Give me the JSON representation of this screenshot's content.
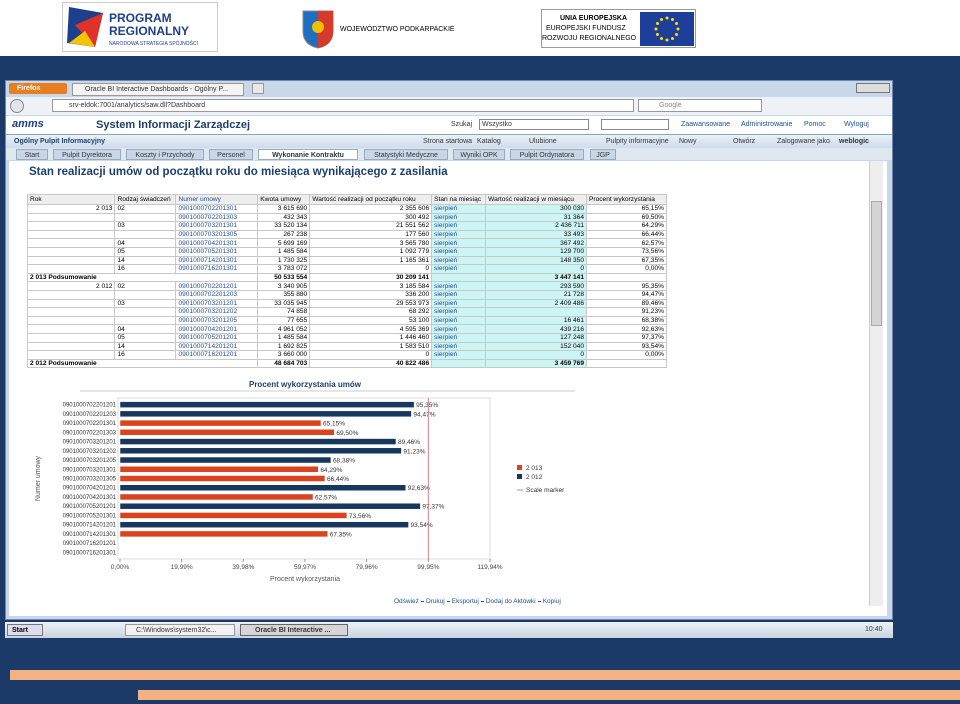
{
  "logos": {
    "program_title": "PROGRAM REGIONALNY",
    "program_subtitle": "NARODOWA STRATEGIA SPÓJNOŚCI",
    "region": "WOJEWÓDZTWO PODKARPACKIE",
    "eu_title": "UNIA EUROPEJSKA",
    "eu_fund_1": "EUROPEJSKI FUNDUSZ",
    "eu_fund_2": "ROZWOJU REGIONALNEGO"
  },
  "browser": {
    "menu": "Firefox",
    "tab": "Oracle BI Interactive Dashboards - Ogólny P...",
    "url": "srv-eldok:7001/analytics/saw.dll?Dashboard",
    "search": "Google"
  },
  "app": {
    "logo": "amms",
    "title": "System Informacji Zarządczej",
    "search_label": "Szukaj",
    "search_scope": "Wszystko",
    "links": [
      "Zaawansowane",
      "Administrowanie",
      "Pomoc",
      "Wyloguj"
    ],
    "dashboard": "Ogólny Pulpit Informacyjny",
    "menu": [
      "Strona startowa",
      "Katalog",
      "Ulubione",
      "Pulpity informacyjne",
      "Nowy",
      "Otwórz"
    ],
    "logged_label": "Zalogowane jako",
    "user": "weblogic",
    "tabs": [
      "Start",
      "Pulpit Dyrektora",
      "Koszty i Przychody",
      "Personel",
      "Wykonanie Kontraktu",
      "Statystyki Medyczne",
      "Wyniki OPK",
      "Pulpit Ordynatora",
      "JGP"
    ],
    "active_tab": "Wykonanie Kontraktu"
  },
  "report_title": "Stan realizacji umów od początku roku do miesiąca wynikającego z zasilania",
  "table": {
    "columns": [
      "Rok",
      "Rodzaj świadczeń",
      "Numer umowy",
      "Kwota umowy",
      "Wartość realizacji od początku roku",
      "Stan na miesiąc",
      "Wartość realizacji w miesiącu",
      "Procent wykorzystania"
    ],
    "rows": [
      [
        "2 013",
        "02",
        "0901000702201301",
        "3 615 690",
        "2 355 606",
        "sierpień",
        "300 030",
        "65,15%"
      ],
      [
        null,
        null,
        "0901000702201303",
        "432 343",
        "300 492",
        "sierpień",
        "31 364",
        "69,50%"
      ],
      [
        null,
        "03",
        "0901000703201301",
        "33 520 134",
        "21 551 562",
        "sierpień",
        "2 436 711",
        "64,29%"
      ],
      [
        null,
        null,
        "0901000703201305",
        "267 238",
        "177 560",
        "sierpień",
        "33 493",
        "66,44%"
      ],
      [
        null,
        "04",
        "0901000704201301",
        "5 699 169",
        "3 565 780",
        "sierpień",
        "367 492",
        "62,57%"
      ],
      [
        null,
        "05",
        "0901000705201301",
        "1 485 584",
        "1 092 779",
        "sierpień",
        "129 700",
        "73,56%"
      ],
      [
        null,
        "14",
        "0901000714201301",
        "1 730 325",
        "1 165 361",
        "sierpień",
        "148 350",
        "67,35%"
      ],
      [
        null,
        "16",
        "0901000716201301",
        "3 783 072",
        "0",
        "sierpień",
        "0",
        "0,00%"
      ],
      [
        "2 013 Podsumowanie",
        null,
        null,
        "50 533 554",
        "30 209 141",
        null,
        "3 447 141",
        null
      ],
      [
        "2 012",
        "02",
        "0901000702201201",
        "3 340 905",
        "3 185 584",
        "sierpień",
        "293 590",
        "95,35%"
      ],
      [
        null,
        null,
        "0901000702201203",
        "355 880",
        "336 200",
        "sierpień",
        "21 728",
        "94,47%"
      ],
      [
        null,
        "03",
        "0901000703201201",
        "33 035 945",
        "29 553 973",
        "sierpień",
        "2 409 486",
        "89,46%"
      ],
      [
        null,
        null,
        "0901000703201202",
        "74 858",
        "68 292",
        "sierpień",
        null,
        "91,23%"
      ],
      [
        null,
        null,
        "0901000703201205",
        "77 655",
        "53 100",
        "sierpień",
        "16 461",
        "68,38%"
      ],
      [
        null,
        "04",
        "0901000704201201",
        "4 961 052",
        "4 595 369",
        "sierpień",
        "439 216",
        "92,63%"
      ],
      [
        null,
        "05",
        "0901000705201201",
        "1 485 584",
        "1 446 460",
        "sierpień",
        "127 248",
        "97,37%"
      ],
      [
        null,
        "14",
        "0901000714201201",
        "1 692 825",
        "1 583 510",
        "sierpień",
        "152 040",
        "93,54%"
      ],
      [
        null,
        "16",
        "0901000716201201",
        "3 660 000",
        "0",
        "sierpień",
        "0",
        "0,00%"
      ],
      [
        "2 012 Podsumowanie",
        null,
        null,
        "48 684 703",
        "40 822 486",
        null,
        "3 459 769",
        null
      ]
    ]
  },
  "chart_data": {
    "type": "hbar",
    "title": "Procent wykorzystania umów",
    "x_label": "Procent wykorzystania",
    "y_label": "Numer umowy",
    "categories": [
      "0901000702201201",
      "0901000702201203",
      "0901000702201301",
      "0901000702201303",
      "0901000703201201",
      "0901000703201202",
      "0901000703201205",
      "0901000703201301",
      "0901000703201305",
      "0901000704201201",
      "0901000704201301",
      "0901000705201201",
      "0901000705201301",
      "0901000714201201",
      "0901000714201301",
      "0901000716201201",
      "0901000716201301"
    ],
    "series": [
      {
        "name": "2 013",
        "color": "#d9431e",
        "values": [
          null,
          null,
          65.15,
          69.5,
          null,
          null,
          null,
          64.29,
          66.44,
          null,
          62.57,
          null,
          73.56,
          null,
          67.35,
          null,
          0
        ],
        "value_labels": [
          null,
          null,
          "65,15%",
          "69,50%",
          null,
          null,
          null,
          "64,29%",
          "66,44%",
          null,
          "62,57%",
          null,
          "73,56%",
          null,
          "67,35%",
          null,
          null
        ]
      },
      {
        "name": "2 012",
        "color": "#17375e",
        "values": [
          95.35,
          94.47,
          null,
          null,
          89.46,
          91.23,
          68.38,
          null,
          null,
          92.63,
          null,
          97.37,
          null,
          93.54,
          null,
          0,
          null
        ],
        "value_labels": [
          "95,35%",
          "94,47%",
          null,
          null,
          "89,46%",
          "91,23%",
          "68,38%",
          null,
          null,
          "92,63%",
          null,
          "97,37%",
          null,
          "93,54%",
          null,
          null,
          null
        ]
      }
    ],
    "xlim": [
      0,
      119.94
    ],
    "xticks": [
      {
        "value": 0,
        "label": "0,00%"
      },
      {
        "value": 19.99,
        "label": "19,99%"
      },
      {
        "value": 39.98,
        "label": "39,98%"
      },
      {
        "value": 59.97,
        "label": "59,97%"
      },
      {
        "value": 79.96,
        "label": "79,96%"
      },
      {
        "value": 99.95,
        "label": "99,95%"
      },
      {
        "value": 119.94,
        "label": "119,94%"
      }
    ],
    "scale_marker": {
      "value": 99.95,
      "label": "Scale marker",
      "color": "#d98080"
    },
    "legend": "right"
  },
  "footer_links": [
    "Odśwież",
    "Drukuj",
    "Eksportuj",
    "Dodaj do Aktówki",
    "Kopiuj"
  ],
  "taskbar": {
    "start": "Start",
    "items": [
      "C:\\Windows\\system32\\c...",
      "Oracle BI Interactive ..."
    ],
    "clock": "10:40"
  }
}
